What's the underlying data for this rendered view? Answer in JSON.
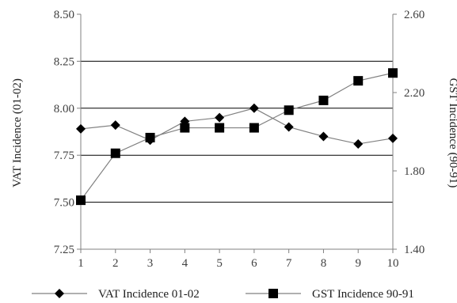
{
  "chart_data": {
    "type": "line",
    "categories": [
      "1",
      "2",
      "3",
      "4",
      "5",
      "6",
      "7",
      "8",
      "9",
      "10"
    ],
    "left_axis": {
      "label": "VAT Incidence (01-02)",
      "ylim": [
        7.25,
        8.5
      ],
      "ticks": [
        "7.25",
        "7.50",
        "7.75",
        "8.00",
        "8.25",
        "8.50"
      ]
    },
    "right_axis": {
      "label": "GST Incidence (90-91)",
      "ylim": [
        1.4,
        2.6
      ],
      "ticks": [
        "1.40",
        "1.80",
        "2.20",
        "2.60"
      ]
    },
    "series": [
      {
        "name": "VAT Incidence 01-02",
        "axis": "left",
        "marker": "diamond",
        "values": [
          7.89,
          7.91,
          7.83,
          7.93,
          7.95,
          8.0,
          7.9,
          7.85,
          7.81,
          7.84
        ]
      },
      {
        "name": "GST Incidence 90-91",
        "axis": "right",
        "marker": "square",
        "values": [
          1.65,
          1.89,
          1.97,
          2.02,
          2.02,
          2.02,
          2.11,
          2.16,
          2.26,
          2.3
        ]
      }
    ],
    "grid": "horizontal",
    "legend": "bottom",
    "colors": {
      "line": "#808080",
      "marker": "#000000",
      "grid": "#000000",
      "axis": "#808080"
    }
  }
}
